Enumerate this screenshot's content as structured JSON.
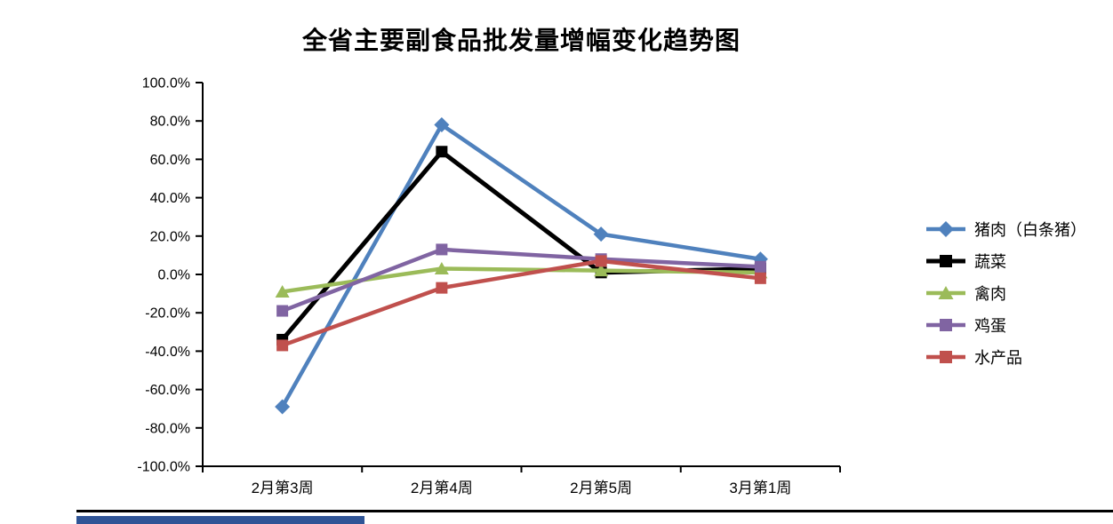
{
  "title": "全省主要副食品批发量增幅变化趋势图",
  "chart_data": {
    "type": "line",
    "categories": [
      "2月第3周",
      "2月第4周",
      "2月第5周",
      "3月第1周"
    ],
    "series": [
      {
        "id": "pork",
        "name": "猪肉（白条猪）",
        "color": "#4F81BD",
        "marker": "diamond",
        "values": [
          -69,
          78,
          21,
          8
        ]
      },
      {
        "id": "vegetables",
        "name": "蔬菜",
        "color": "#000000",
        "marker": "square",
        "values": [
          -34,
          64,
          1,
          3
        ]
      },
      {
        "id": "poultry",
        "name": "禽肉",
        "color": "#9BBB59",
        "marker": "triangle",
        "values": [
          -9,
          3,
          2,
          1
        ]
      },
      {
        "id": "eggs",
        "name": "鸡蛋",
        "color": "#8064A2",
        "marker": "square",
        "values": [
          -19,
          13,
          8,
          4
        ]
      },
      {
        "id": "aquatic",
        "name": "水产品",
        "color": "#C0504D",
        "marker": "square",
        "values": [
          -37,
          -7,
          7,
          -2
        ]
      }
    ],
    "title": "全省主要副食品批发量增幅变化趋势图",
    "xlabel": "",
    "ylabel": "",
    "ylim": [
      -100,
      100
    ],
    "ytick_step": 20,
    "ytick_labels": [
      "100.0%",
      "80.0%",
      "60.0%",
      "40.0%",
      "20.0%",
      "0.0%",
      "-20.0%",
      "-40.0%",
      "-60.0%",
      "-80.0%",
      "-100.0%"
    ],
    "grid": false,
    "legend_position": "right"
  },
  "decor": {
    "axis_color": "#000000",
    "bottom_rule_color": "#000000",
    "bottom_bar_color": "#2F5496"
  }
}
